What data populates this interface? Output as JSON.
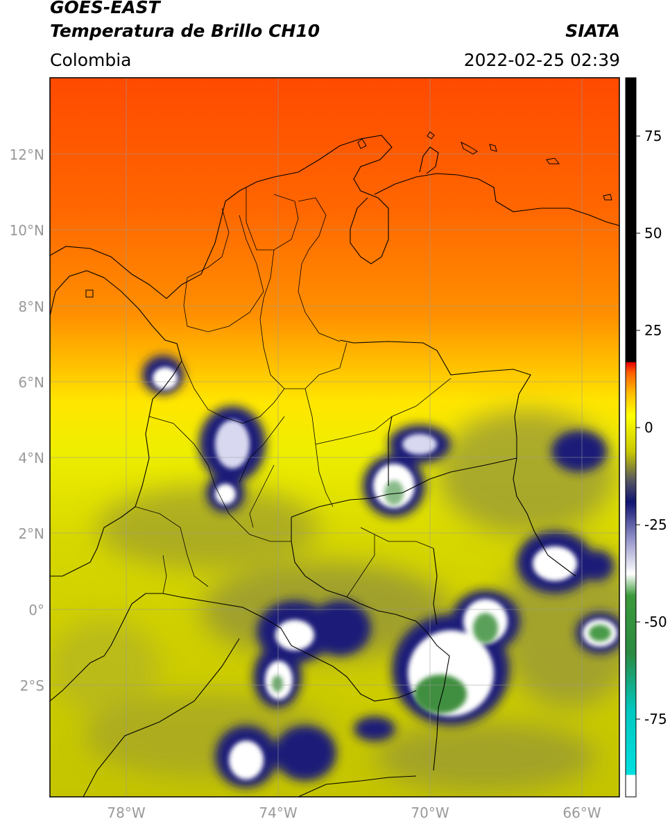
{
  "header": {
    "line1": "GOES-EAST",
    "line2": "Temperatura de Brillo CH10",
    "source": "SIATA",
    "region": "Colombia",
    "datetime": "2022-02-25 02:39"
  },
  "lat_ticks": [
    "12°N",
    "10°N",
    "8°N",
    "6°N",
    "4°N",
    "2°N",
    "0°",
    "2°S"
  ],
  "lon_ticks": [
    "78°W",
    "74°W",
    "70°W",
    "66°W"
  ],
  "colorbar": {
    "ticks": [
      "75",
      "50",
      "25",
      "0",
      "-25",
      "-50",
      "-75"
    ],
    "range": [
      -95,
      90
    ]
  },
  "colors": {
    "hot": "#ff5a00",
    "warm": "#ff9a00",
    "mid": "#ffe800",
    "cool": "#c8c800",
    "olive": "#7a7a3a",
    "navy": "#1b1e78",
    "white": "#ffffff",
    "green": "#3a8a3a",
    "black": "#000000"
  }
}
